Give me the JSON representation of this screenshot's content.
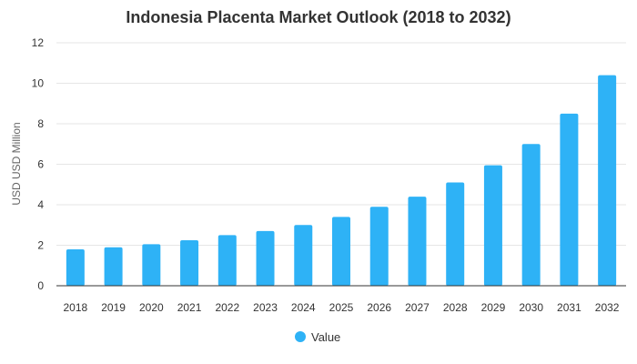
{
  "chart_data": {
    "type": "bar",
    "title": "Indonesia Placenta Market Outlook (2018 to 2032)",
    "xlabel": "",
    "ylabel": "USD USD Million",
    "categories": [
      "2018",
      "2019",
      "2020",
      "2021",
      "2022",
      "2023",
      "2024",
      "2025",
      "2026",
      "2027",
      "2028",
      "2029",
      "2030",
      "2031",
      "2032"
    ],
    "series": [
      {
        "name": "Value",
        "values": [
          1.8,
          1.9,
          2.05,
          2.25,
          2.5,
          2.7,
          3.0,
          3.4,
          3.9,
          4.4,
          5.1,
          5.95,
          7.0,
          8.5,
          10.4
        ],
        "color": "#2eb2f6"
      }
    ],
    "ylim": [
      0,
      12
    ],
    "yticks": [
      0,
      2,
      4,
      6,
      8,
      10,
      12
    ],
    "grid": true,
    "legend": "bottom-center"
  },
  "colors": {
    "bar": "#2eb2f6",
    "grid": "#e6e6e6",
    "axis": "#333333",
    "text": "#333333"
  }
}
